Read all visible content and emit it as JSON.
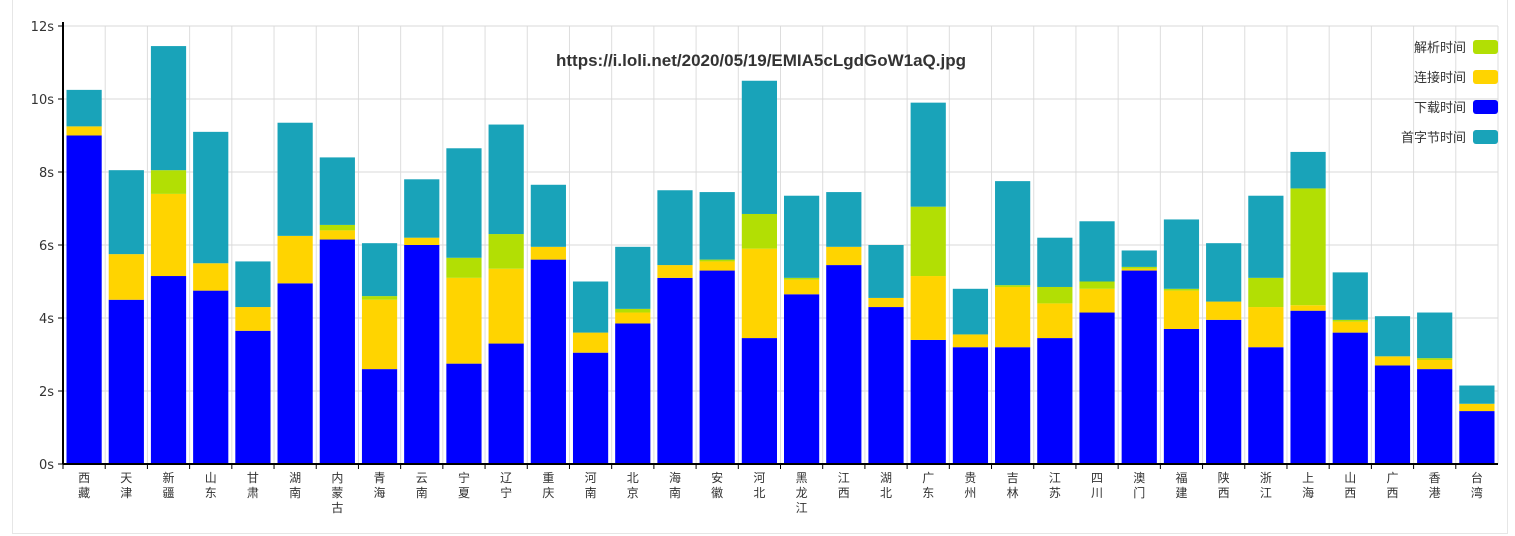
{
  "chart_data": {
    "type": "bar",
    "stacked": true,
    "title": "https://i.loli.net/2020/05/19/EMIA5cLgdGoW1aQ.jpg",
    "ylim": [
      0,
      12
    ],
    "ytick_labels": [
      "0s",
      "2s",
      "4s",
      "6s",
      "8s",
      "10s",
      "12s"
    ],
    "categories": [
      "西藏",
      "天津",
      "新疆",
      "山东",
      "甘肃",
      "湖南",
      "内蒙古",
      "青海",
      "云南",
      "宁夏",
      "辽宁",
      "重庆",
      "河南",
      "北京",
      "海南",
      "安徽",
      "河北",
      "黑龙江",
      "江西",
      "湖北",
      "广东",
      "贵州",
      "吉林",
      "江苏",
      "四川",
      "澳门",
      "福建",
      "陕西",
      "浙江",
      "上海",
      "山西",
      "广西",
      "香港",
      "台湾"
    ],
    "series": [
      {
        "name": "下载时间",
        "color": "#0000ff",
        "values": [
          9.0,
          4.5,
          5.15,
          4.75,
          3.65,
          4.95,
          6.15,
          2.6,
          6.0,
          2.75,
          3.3,
          5.6,
          3.05,
          3.85,
          5.1,
          5.3,
          3.45,
          4.65,
          5.45,
          4.3,
          3.4,
          3.2,
          3.2,
          3.45,
          4.15,
          5.3,
          3.7,
          3.95,
          3.2,
          4.2,
          3.6,
          2.7,
          2.6,
          1.45
        ]
      },
      {
        "name": "连接时间",
        "color": "#ffd400",
        "values": [
          0.25,
          1.25,
          2.25,
          0.75,
          0.65,
          1.3,
          0.25,
          1.9,
          0.2,
          2.35,
          2.05,
          0.35,
          0.55,
          0.3,
          0.35,
          0.25,
          2.45,
          0.4,
          0.5,
          0.25,
          1.75,
          0.35,
          1.65,
          0.95,
          0.65,
          0.05,
          1.05,
          0.5,
          1.1,
          0.15,
          0.3,
          0.25,
          0.25,
          0.2
        ]
      },
      {
        "name": "解析时间",
        "color": "#b2df04",
        "values": [
          0,
          0,
          0.65,
          0,
          0,
          0,
          0.15,
          0.1,
          0,
          0.55,
          0.95,
          0,
          0,
          0.1,
          0,
          0.05,
          0.95,
          0.05,
          0,
          0,
          1.9,
          0,
          0.05,
          0.45,
          0.2,
          0.05,
          0.05,
          0,
          0.8,
          3.2,
          0.05,
          0,
          0.05,
          0
        ]
      },
      {
        "name": "首字节时间",
        "color": "#19a3b9",
        "values": [
          1.0,
          2.3,
          3.4,
          3.6,
          1.25,
          3.1,
          1.85,
          1.45,
          1.6,
          3.0,
          3.0,
          1.7,
          1.4,
          1.7,
          2.05,
          1.85,
          3.65,
          2.25,
          1.5,
          1.45,
          2.85,
          1.25,
          2.85,
          1.35,
          1.65,
          0.45,
          1.9,
          1.6,
          2.25,
          1.0,
          1.3,
          1.1,
          1.25,
          0.5
        ]
      }
    ],
    "legend_position": "top-right",
    "legend_order": [
      "解析时间",
      "连接时间",
      "下载时间",
      "首字节时间"
    ],
    "grid": true
  }
}
